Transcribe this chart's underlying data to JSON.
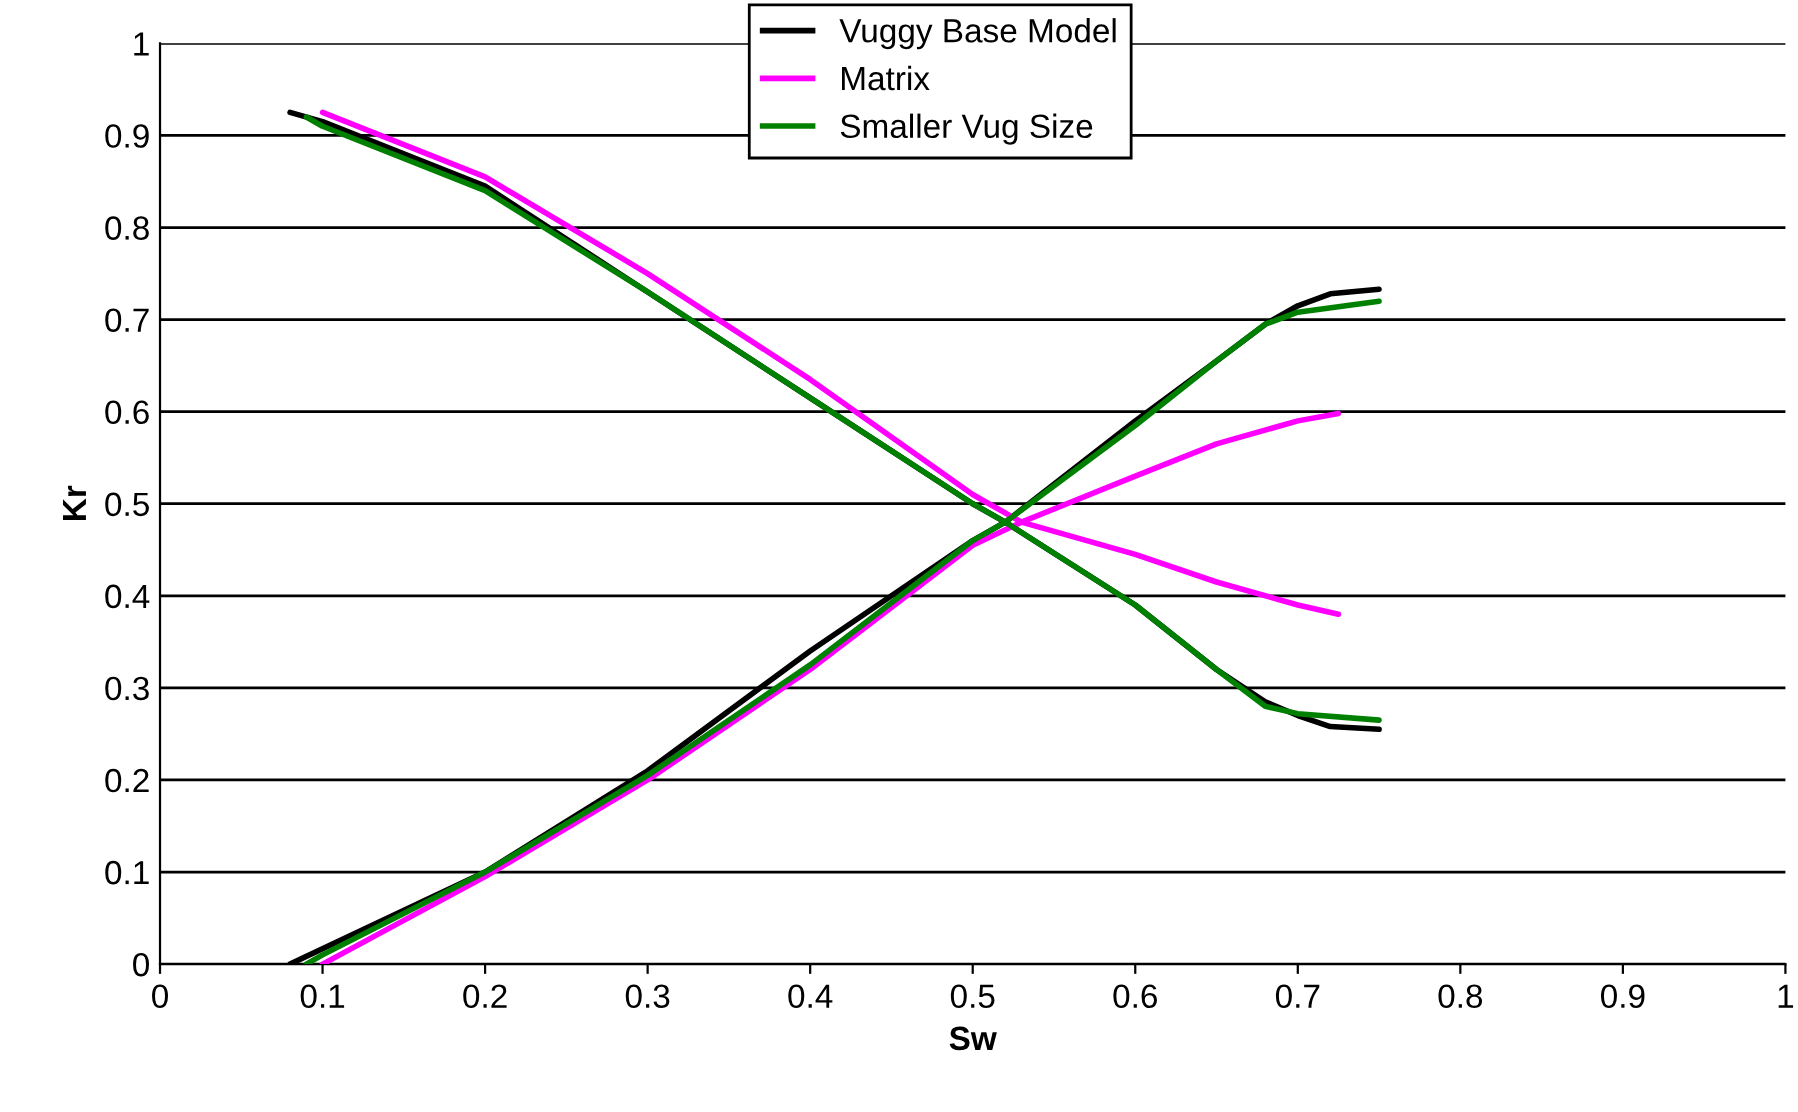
{
  "chart_data": {
    "type": "line",
    "xlabel": "Sw",
    "ylabel": "Kr",
    "xlim": [
      0,
      1
    ],
    "ylim": [
      0,
      1
    ],
    "xticks": [
      0,
      0.1,
      0.2,
      0.3,
      0.4,
      0.5,
      0.6,
      0.7,
      0.8,
      0.9,
      1
    ],
    "yticks": [
      0,
      0.1,
      0.2,
      0.3,
      0.4,
      0.5,
      0.6,
      0.7,
      0.8,
      0.9,
      1
    ],
    "grid": "y",
    "legend": "top",
    "marker": "none",
    "line_style": "solid",
    "series": [
      {
        "name": "Vuggy Base Model",
        "color": "#000000",
        "x": [
          0.08,
          0.2,
          0.3,
          0.4,
          0.5,
          0.52,
          0.6,
          0.65,
          0.68,
          0.7,
          0.72,
          0.75
        ],
        "values": [
          0,
          0.1,
          0.21,
          0.34,
          0.46,
          0.48,
          0.59,
          0.655,
          0.695,
          0.715,
          0.728,
          0.733
        ]
      },
      {
        "color": "#000000",
        "x": [
          0.08,
          0.1,
          0.2,
          0.3,
          0.4,
          0.5,
          0.52,
          0.6,
          0.65,
          0.68,
          0.7,
          0.72,
          0.75
        ],
        "values": [
          0.925,
          0.915,
          0.845,
          0.73,
          0.615,
          0.5,
          0.48,
          0.39,
          0.32,
          0.285,
          0.27,
          0.258,
          0.255
        ]
      },
      {
        "name": "Matrix",
        "color": "#ff00ff",
        "x": [
          0.1,
          0.2,
          0.3,
          0.4,
          0.5,
          0.53,
          0.6,
          0.65,
          0.7,
          0.725
        ],
        "values": [
          0,
          0.095,
          0.2,
          0.32,
          0.455,
          0.48,
          0.53,
          0.565,
          0.59,
          0.598
        ]
      },
      {
        "color": "#ff00ff",
        "x": [
          0.1,
          0.2,
          0.3,
          0.4,
          0.5,
          0.53,
          0.6,
          0.65,
          0.7,
          0.725
        ],
        "values": [
          0.925,
          0.855,
          0.75,
          0.635,
          0.51,
          0.48,
          0.445,
          0.415,
          0.39,
          0.38
        ]
      },
      {
        "name": "Smaller Vug Size",
        "color": "#008000",
        "x": [
          0.09,
          0.1,
          0.2,
          0.3,
          0.4,
          0.5,
          0.52,
          0.6,
          0.65,
          0.68,
          0.7,
          0.75
        ],
        "values": [
          0,
          0.01,
          0.1,
          0.205,
          0.325,
          0.46,
          0.48,
          0.585,
          0.655,
          0.695,
          0.708,
          0.72
        ]
      },
      {
        "color": "#008000",
        "x": [
          0.09,
          0.1,
          0.2,
          0.3,
          0.4,
          0.5,
          0.52,
          0.6,
          0.65,
          0.68,
          0.7,
          0.75
        ],
        "values": [
          0.92,
          0.91,
          0.84,
          0.73,
          0.615,
          0.5,
          0.48,
          0.39,
          0.32,
          0.28,
          0.272,
          0.265
        ]
      }
    ]
  }
}
